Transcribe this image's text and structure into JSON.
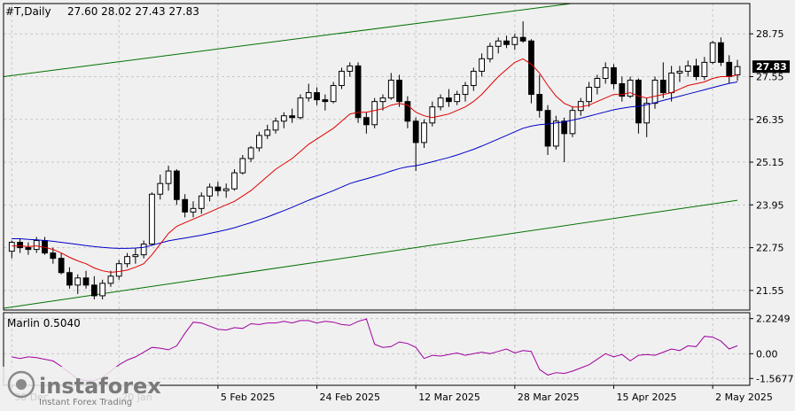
{
  "header": {
    "symbol": "#T,Daily",
    "ohlc": "27.60 28.02 27.43 27.83"
  },
  "logo": {
    "text": "instaforex",
    "subtext": "Instant Forex Trading"
  },
  "colors": {
    "background": "#f0f0f0",
    "grid": "#c8c8c8",
    "axis": "#000000",
    "ma_fast": "#e00000",
    "ma_slow": "#0000c8",
    "channel": "#007000",
    "oscillator": "#a000a0",
    "bull_body": "#ffffff",
    "bear_body": "#000000",
    "price_tag_bg": "#000000",
    "price_tag_fg": "#ffffff"
  },
  "chart_data": [
    {
      "type": "candlestick",
      "title": "#T,Daily",
      "ylim": [
        21.0,
        29.6
      ],
      "yticks": [
        "28.75",
        "27.55",
        "26.35",
        "25.15",
        "23.95",
        "22.75",
        "21.55"
      ],
      "last_price_label": "27.83",
      "x_tick_labels": [
        "30 Dec",
        "20 Jan",
        "5 Feb 2025",
        "24 Feb 2025",
        "12 Mar 2025",
        "28 Mar 2025",
        "15 Apr 2025",
        "2 May 2025"
      ],
      "x_tick_index": [
        0,
        13,
        25,
        37,
        49,
        61,
        73,
        85
      ],
      "grid": true,
      "candles": [
        [
          22.65,
          22.95,
          22.45,
          22.9
        ],
        [
          22.9,
          23.0,
          22.6,
          22.75
        ],
        [
          22.75,
          22.9,
          22.55,
          22.7
        ],
        [
          22.7,
          23.05,
          22.6,
          22.95
        ],
        [
          22.95,
          23.05,
          22.55,
          22.6
        ],
        [
          22.6,
          22.75,
          22.3,
          22.45
        ],
        [
          22.45,
          22.6,
          22.0,
          22.05
        ],
        [
          22.05,
          22.2,
          21.6,
          21.7
        ],
        [
          21.7,
          22.0,
          21.45,
          21.9
        ],
        [
          21.9,
          22.1,
          21.6,
          21.7
        ],
        [
          21.7,
          21.95,
          21.3,
          21.4
        ],
        [
          21.4,
          21.85,
          21.3,
          21.75
        ],
        [
          21.75,
          22.1,
          21.65,
          21.95
        ],
        [
          21.95,
          22.4,
          21.85,
          22.3
        ],
        [
          22.3,
          22.6,
          22.2,
          22.5
        ],
        [
          22.5,
          22.75,
          22.3,
          22.55
        ],
        [
          22.55,
          22.95,
          22.45,
          22.85
        ],
        [
          22.85,
          24.3,
          22.8,
          24.25
        ],
        [
          24.25,
          24.8,
          24.1,
          24.55
        ],
        [
          24.55,
          25.05,
          24.35,
          24.9
        ],
        [
          24.9,
          24.95,
          23.95,
          24.1
        ],
        [
          24.1,
          24.25,
          23.6,
          23.75
        ],
        [
          23.75,
          24.05,
          23.6,
          23.85
        ],
        [
          23.85,
          24.3,
          23.7,
          24.2
        ],
        [
          24.2,
          24.55,
          24.05,
          24.45
        ],
        [
          24.45,
          24.6,
          24.2,
          24.35
        ],
        [
          24.35,
          24.55,
          24.15,
          24.4
        ],
        [
          24.4,
          24.95,
          24.35,
          24.85
        ],
        [
          24.85,
          25.35,
          24.8,
          25.25
        ],
        [
          25.25,
          25.6,
          25.15,
          25.55
        ],
        [
          25.55,
          26.0,
          25.45,
          25.9
        ],
        [
          25.9,
          26.2,
          25.8,
          26.05
        ],
        [
          26.05,
          26.4,
          25.95,
          26.3
        ],
        [
          26.3,
          26.55,
          26.1,
          26.45
        ],
        [
          26.45,
          26.65,
          26.25,
          26.4
        ],
        [
          26.4,
          27.05,
          26.35,
          26.95
        ],
        [
          26.95,
          27.35,
          26.85,
          27.1
        ],
        [
          27.1,
          27.25,
          26.75,
          26.9
        ],
        [
          26.9,
          27.05,
          26.6,
          26.85
        ],
        [
          26.85,
          27.4,
          26.8,
          27.3
        ],
        [
          27.3,
          27.8,
          27.2,
          27.7
        ],
        [
          27.7,
          27.95,
          27.55,
          27.85
        ],
        [
          27.85,
          27.95,
          26.25,
          26.4
        ],
        [
          26.4,
          26.55,
          25.95,
          26.2
        ],
        [
          26.2,
          26.95,
          26.1,
          26.85
        ],
        [
          26.85,
          27.05,
          26.6,
          26.95
        ],
        [
          26.95,
          27.65,
          26.9,
          27.45
        ],
        [
          27.45,
          27.6,
          26.7,
          26.85
        ],
        [
          26.85,
          27.0,
          26.1,
          26.3
        ],
        [
          26.3,
          26.4,
          24.9,
          25.7
        ],
        [
          25.7,
          26.35,
          25.55,
          26.25
        ],
        [
          26.25,
          26.85,
          26.15,
          26.7
        ],
        [
          26.7,
          27.05,
          26.6,
          26.95
        ],
        [
          26.95,
          27.2,
          26.7,
          26.85
        ],
        [
          26.85,
          27.15,
          26.75,
          27.05
        ],
        [
          27.05,
          27.4,
          26.85,
          27.3
        ],
        [
          27.3,
          27.8,
          27.15,
          27.7
        ],
        [
          27.7,
          28.2,
          27.55,
          28.05
        ],
        [
          28.05,
          28.5,
          27.95,
          28.4
        ],
        [
          28.4,
          28.65,
          28.2,
          28.55
        ],
        [
          28.55,
          28.7,
          28.35,
          28.45
        ],
        [
          28.45,
          28.75,
          28.3,
          28.65
        ],
        [
          28.65,
          29.1,
          28.5,
          28.55
        ],
        [
          28.55,
          28.6,
          26.8,
          27.05
        ],
        [
          27.05,
          27.6,
          26.4,
          26.6
        ],
        [
          26.6,
          26.75,
          25.35,
          25.6
        ],
        [
          25.6,
          26.45,
          25.5,
          26.3
        ],
        [
          26.3,
          26.4,
          25.15,
          25.95
        ],
        [
          25.95,
          26.7,
          25.85,
          26.6
        ],
        [
          26.6,
          26.95,
          26.45,
          26.85
        ],
        [
          26.85,
          27.4,
          26.7,
          27.25
        ],
        [
          27.25,
          27.6,
          27.05,
          27.5
        ],
        [
          27.5,
          27.95,
          27.35,
          27.8
        ],
        [
          27.8,
          27.9,
          27.2,
          27.35
        ],
        [
          27.35,
          27.55,
          26.85,
          27.0
        ],
        [
          27.0,
          27.55,
          26.95,
          27.45
        ],
        [
          27.45,
          27.5,
          25.95,
          26.25
        ],
        [
          26.25,
          26.95,
          25.85,
          26.8
        ],
        [
          26.8,
          27.55,
          26.65,
          27.45
        ],
        [
          27.45,
          27.95,
          26.95,
          27.1
        ],
        [
          27.1,
          27.85,
          26.85,
          27.65
        ],
        [
          27.65,
          27.85,
          27.4,
          27.7
        ],
        [
          27.7,
          28.0,
          27.55,
          27.85
        ],
        [
          27.85,
          28.05,
          27.45,
          27.55
        ],
        [
          27.55,
          28.1,
          27.45,
          27.95
        ],
        [
          27.95,
          28.55,
          27.9,
          28.5
        ],
        [
          28.5,
          28.65,
          27.85,
          27.95
        ],
        [
          27.95,
          28.15,
          27.35,
          27.55
        ],
        [
          27.6,
          28.02,
          27.43,
          27.83
        ]
      ],
      "ma_fast": [
        22.8,
        22.8,
        22.78,
        22.8,
        22.76,
        22.7,
        22.6,
        22.48,
        22.38,
        22.3,
        22.18,
        22.1,
        22.06,
        22.08,
        22.12,
        22.2,
        22.3,
        22.55,
        22.85,
        23.15,
        23.35,
        23.45,
        23.55,
        23.65,
        23.75,
        23.85,
        23.95,
        24.05,
        24.2,
        24.35,
        24.55,
        24.75,
        24.95,
        25.1,
        25.25,
        25.45,
        25.65,
        25.8,
        25.95,
        26.1,
        26.3,
        26.5,
        26.55,
        26.55,
        26.6,
        26.65,
        26.75,
        26.8,
        26.75,
        26.55,
        26.45,
        26.4,
        26.45,
        26.5,
        26.6,
        26.7,
        26.85,
        27.05,
        27.3,
        27.55,
        27.75,
        27.95,
        28.05,
        27.9,
        27.65,
        27.3,
        27.0,
        26.8,
        26.7,
        26.7,
        26.75,
        26.85,
        26.95,
        27.05,
        27.05,
        27.1,
        27.0,
        26.95,
        27.0,
        27.05,
        27.1,
        27.2,
        27.3,
        27.35,
        27.4,
        27.5,
        27.55,
        27.55,
        27.6
      ],
      "ma_slow": [
        23.0,
        23.0,
        22.98,
        22.97,
        22.95,
        22.93,
        22.9,
        22.87,
        22.84,
        22.81,
        22.78,
        22.76,
        22.74,
        22.73,
        22.73,
        22.74,
        22.76,
        22.82,
        22.88,
        22.94,
        22.98,
        23.02,
        23.06,
        23.1,
        23.15,
        23.2,
        23.25,
        23.31,
        23.38,
        23.45,
        23.53,
        23.61,
        23.7,
        23.79,
        23.88,
        23.98,
        24.08,
        24.17,
        24.26,
        24.35,
        24.45,
        24.55,
        24.62,
        24.68,
        24.75,
        24.82,
        24.9,
        24.97,
        25.02,
        25.05,
        25.1,
        25.16,
        25.22,
        25.28,
        25.35,
        25.43,
        25.51,
        25.6,
        25.7,
        25.8,
        25.9,
        26.0,
        26.1,
        26.16,
        26.2,
        26.22,
        26.25,
        26.28,
        26.33,
        26.38,
        26.44,
        26.5,
        26.56,
        26.62,
        26.66,
        26.7,
        26.72,
        26.76,
        26.82,
        26.88,
        26.94,
        27.0,
        27.06,
        27.12,
        27.18,
        27.24,
        27.3,
        27.36,
        27.4
      ],
      "channel_upper": {
        "start": [
          0,
          27.55
        ],
        "end": [
          88,
          30.2
        ]
      },
      "channel_lower": {
        "start": [
          0,
          21.05
        ],
        "end": [
          88,
          24.08
        ]
      }
    },
    {
      "type": "line",
      "name": "Marlin 0.5040",
      "ylim": [
        -2.0,
        2.6
      ],
      "yticks": [
        "2.2249",
        "0.00",
        "-1.5677"
      ],
      "series": [
        {
          "name": "Marlin",
          "values": [
            -0.2,
            -0.3,
            -0.2,
            -0.25,
            -0.35,
            -0.45,
            -0.8,
            -1.2,
            -1.6,
            -1.7,
            -1.7,
            -1.5,
            -1.1,
            -0.7,
            -0.4,
            -0.2,
            0.1,
            0.4,
            0.35,
            0.25,
            0.5,
            1.3,
            2.0,
            1.95,
            1.75,
            1.55,
            1.5,
            1.65,
            1.6,
            1.9,
            1.85,
            1.95,
            1.95,
            2.05,
            1.95,
            2.1,
            2.1,
            1.95,
            2.05,
            2.0,
            1.85,
            1.8,
            2.05,
            2.2,
            0.6,
            0.4,
            0.45,
            0.75,
            0.65,
            0.4,
            -0.3,
            -0.1,
            -0.15,
            -0.05,
            0.05,
            -0.1,
            0.0,
            0.1,
            0.0,
            0.15,
            0.3,
            0.05,
            0.2,
            0.15,
            -1.0,
            -1.35,
            -1.2,
            -1.25,
            -1.1,
            -0.9,
            -0.7,
            -0.35,
            0.0,
            -0.2,
            -0.05,
            -0.45,
            -0.1,
            -0.05,
            -0.1,
            0.1,
            0.3,
            0.2,
            0.5,
            0.45,
            1.1,
            1.05,
            0.8,
            0.3,
            0.5
          ]
        }
      ]
    }
  ]
}
